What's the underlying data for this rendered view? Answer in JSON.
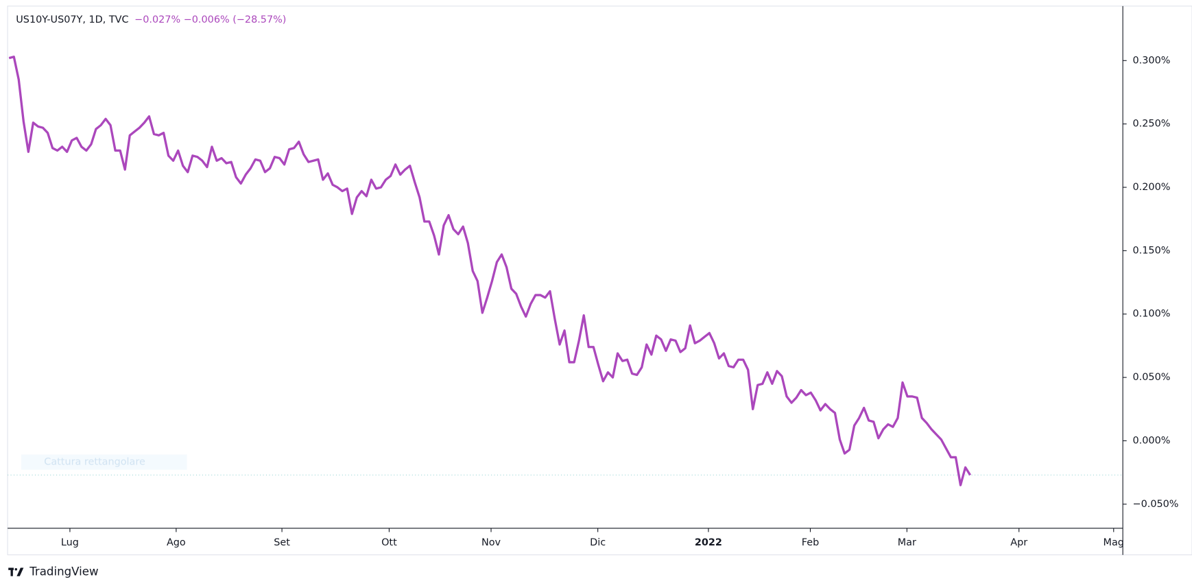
{
  "header": {
    "symbol": "US10Y-US07Y, 1D, TVC",
    "change": "−0.027%  −0.006% (−28.57%)"
  },
  "overlay_hint": "Cattura rettangolare",
  "brand": "TradingView",
  "chart_data": {
    "type": "line",
    "color": "#ab47bc",
    "values": [
      0.302,
      0.303,
      0.285,
      0.252,
      0.228,
      0.251,
      0.248,
      0.247,
      0.243,
      0.231,
      0.229,
      0.232,
      0.228,
      0.237,
      0.239,
      0.232,
      0.229,
      0.234,
      0.246,
      0.249,
      0.254,
      0.249,
      0.229,
      0.229,
      0.214,
      0.241,
      0.244,
      0.247,
      0.251,
      0.256,
      0.242,
      0.241,
      0.243,
      0.225,
      0.221,
      0.229,
      0.217,
      0.212,
      0.225,
      0.224,
      0.221,
      0.216,
      0.232,
      0.221,
      0.223,
      0.219,
      0.22,
      0.208,
      0.203,
      0.21,
      0.215,
      0.222,
      0.221,
      0.212,
      0.215,
      0.224,
      0.223,
      0.218,
      0.23,
      0.231,
      0.236,
      0.226,
      0.22,
      0.221,
      0.222,
      0.206,
      0.211,
      0.202,
      0.2,
      0.197,
      0.199,
      0.179,
      0.192,
      0.197,
      0.193,
      0.206,
      0.199,
      0.2,
      0.206,
      0.209,
      0.218,
      0.21,
      0.214,
      0.217,
      0.204,
      0.192,
      0.173,
      0.173,
      0.162,
      0.147,
      0.17,
      0.178,
      0.167,
      0.163,
      0.169,
      0.156,
      0.134,
      0.126,
      0.101,
      0.113,
      0.126,
      0.141,
      0.147,
      0.137,
      0.12,
      0.116,
      0.106,
      0.098,
      0.108,
      0.115,
      0.115,
      0.113,
      0.118,
      0.096,
      0.076,
      0.087,
      0.062,
      0.062,
      0.079,
      0.099,
      0.074,
      0.074,
      0.06,
      0.047,
      0.054,
      0.05,
      0.069,
      0.063,
      0.064,
      0.053,
      0.052,
      0.058,
      0.076,
      0.068,
      0.083,
      0.08,
      0.071,
      0.08,
      0.079,
      0.07,
      0.073,
      0.091,
      0.077,
      0.079,
      0.082,
      0.085,
      0.077,
      0.065,
      0.069,
      0.059,
      0.058,
      0.064,
      0.064,
      0.056,
      0.025,
      0.044,
      0.045,
      0.054,
      0.045,
      0.055,
      0.051,
      0.035,
      0.03,
      0.034,
      0.04,
      0.036,
      0.038,
      0.032,
      0.024,
      0.029,
      0.025,
      0.022,
      0.001,
      -0.01,
      -0.007,
      0.012,
      0.018,
      0.026,
      0.016,
      0.015,
      0.002,
      0.009,
      0.013,
      0.011,
      0.018,
      0.046,
      0.035,
      0.035,
      0.034,
      0.018,
      0.014,
      0.009,
      0.005,
      0.001,
      -0.006,
      -0.013,
      -0.013,
      -0.035,
      -0.021,
      -0.027
    ],
    "xlim": [
      -0.3,
      230.6
    ],
    "xticks": [
      {
        "value": 12.6,
        "label": "Lug"
      },
      {
        "value": 34.6,
        "label": "Ago"
      },
      {
        "value": 56.5,
        "label": "Set"
      },
      {
        "value": 78.7,
        "label": "Ott"
      },
      {
        "value": 99.8,
        "label": "Nov"
      },
      {
        "value": 121.9,
        "label": "Dic"
      },
      {
        "value": 144.8,
        "label": "2022"
      },
      {
        "value": 165.9,
        "label": "Feb"
      },
      {
        "value": 185.9,
        "label": "Mar"
      },
      {
        "value": 209.1,
        "label": "Apr"
      },
      {
        "value": 228.7,
        "label": "Mag"
      }
    ],
    "ylim": [
      -0.069,
      0.343
    ],
    "yticks": [
      {
        "value": 0.3,
        "label": "0.300%"
      },
      {
        "value": 0.25,
        "label": "0.250%"
      },
      {
        "value": 0.2,
        "label": "0.200%"
      },
      {
        "value": 0.15,
        "label": "0.150%"
      },
      {
        "value": 0.1,
        "label": "0.100%"
      },
      {
        "value": 0.05,
        "label": "0.050%"
      },
      {
        "value": 0,
        "label": "0.000%"
      },
      {
        "value": -0.05,
        "label": "−0.050%"
      }
    ]
  }
}
